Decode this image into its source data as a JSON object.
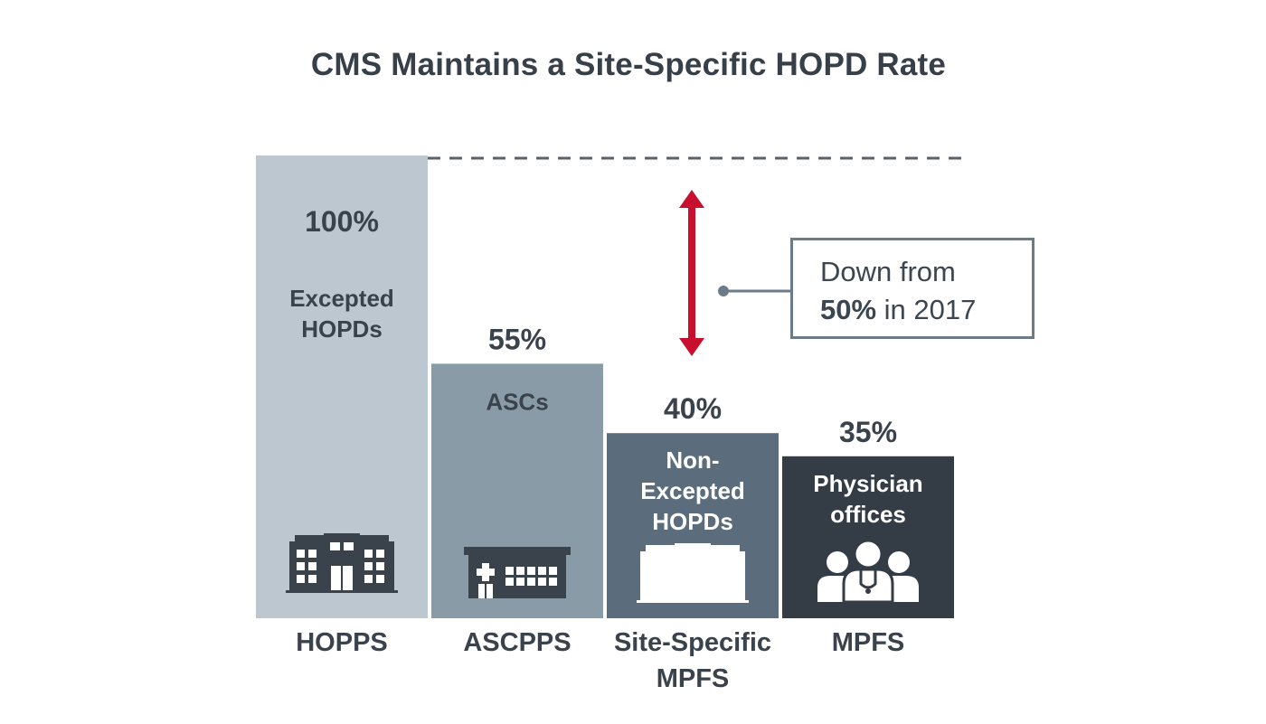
{
  "title": "CMS Maintains a Site-Specific HOPD Rate",
  "callout": {
    "line1": "Down from",
    "value": "50%",
    "suffix": " in 2017"
  },
  "colors": {
    "hopps": "#bcc7cf",
    "ascpps": "#8a9ba8",
    "site_specific": "#5b6d7c",
    "mpfs": "#343c45",
    "arrow": "#c8102e",
    "text": "#3a424b",
    "dashed": "#5a636c"
  },
  "chart_data": {
    "type": "bar",
    "title": "CMS Maintains a Site-Specific HOPD Rate",
    "categories": [
      "HOPPS",
      "ASCPPS",
      "Site-Specific MPFS",
      "MPFS"
    ],
    "category_lines": [
      [
        "HOPPS"
      ],
      [
        "ASCPPS"
      ],
      [
        "Site-Specific",
        "MPFS"
      ],
      [
        "MPFS"
      ]
    ],
    "values": [
      100,
      55,
      40,
      35
    ],
    "value_labels": [
      "100%",
      "55%",
      "40%",
      "35%"
    ],
    "bar_labels": [
      [
        "Excepted",
        "HOPDs"
      ],
      [
        "ASCs"
      ],
      [
        "Non-",
        "Excepted",
        "HOPDs"
      ],
      [
        "Physician",
        "offices"
      ]
    ],
    "icons": [
      "hospital-icon",
      "clinic-icon",
      "hospital-icon",
      "physicians-group-icon"
    ],
    "ylim": [
      0,
      100
    ],
    "reference_line": 100,
    "grid": false,
    "xlabel": "",
    "ylabel": ""
  }
}
